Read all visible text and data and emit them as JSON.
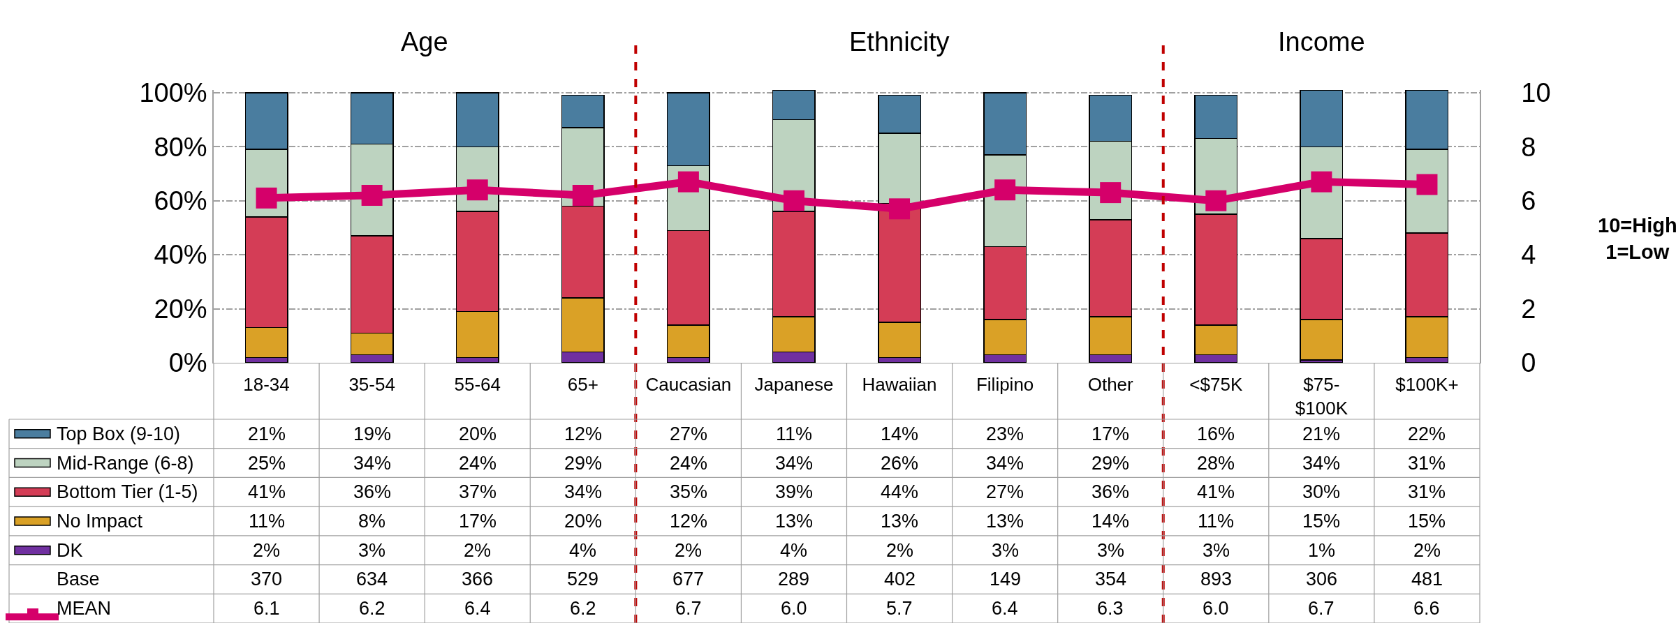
{
  "chart_data": {
    "type": "bar",
    "stacked": true,
    "categories": [
      "18-34",
      "35-54",
      "55-64",
      "65+",
      "Caucasian",
      "Japanese",
      "Hawaiian",
      "Filipino",
      "Other",
      "<$75K",
      "$75-$100K",
      "$100K+"
    ],
    "series": [
      {
        "name": "DK",
        "color": "#7030a0",
        "values": [
          2,
          3,
          2,
          4,
          2,
          4,
          2,
          3,
          3,
          3,
          1,
          2
        ],
        "value_labels": [
          "2%",
          "3%",
          "2%",
          "4%",
          "2%",
          "4%",
          "2%",
          "3%",
          "3%",
          "3%",
          "1%",
          "2%"
        ]
      },
      {
        "name": "No Impact",
        "color": "#daa126",
        "values": [
          11,
          8,
          17,
          20,
          12,
          13,
          13,
          13,
          14,
          11,
          15,
          15
        ],
        "value_labels": [
          "11%",
          "8%",
          "17%",
          "20%",
          "12%",
          "13%",
          "13%",
          "13%",
          "14%",
          "11%",
          "15%",
          "15%"
        ]
      },
      {
        "name": "Bottom Tier (1-5)",
        "color": "#d43d56",
        "values": [
          41,
          36,
          37,
          34,
          35,
          39,
          44,
          27,
          36,
          41,
          30,
          31
        ],
        "value_labels": [
          "41%",
          "36%",
          "37%",
          "34%",
          "35%",
          "39%",
          "44%",
          "27%",
          "36%",
          "41%",
          "30%",
          "31%"
        ]
      },
      {
        "name": "Mid-Range (6-8)",
        "color": "#bdd3c0",
        "values": [
          25,
          34,
          24,
          29,
          24,
          34,
          26,
          34,
          29,
          28,
          34,
          31
        ],
        "value_labels": [
          "25%",
          "34%",
          "24%",
          "29%",
          "24%",
          "34%",
          "26%",
          "34%",
          "29%",
          "28%",
          "34%",
          "31%"
        ]
      },
      {
        "name": "Top Box (9-10)",
        "color": "#4a7d9f",
        "values": [
          21,
          19,
          20,
          12,
          27,
          11,
          14,
          23,
          17,
          16,
          21,
          22
        ],
        "value_labels": [
          "21%",
          "19%",
          "20%",
          "12%",
          "27%",
          "11%",
          "14%",
          "23%",
          "17%",
          "16%",
          "21%",
          "22%"
        ]
      },
      {
        "name": "MEAN",
        "type": "line",
        "axis": "y2",
        "color": "#d5006a",
        "marker": "square",
        "values": [
          6.1,
          6.2,
          6.4,
          6.2,
          6.7,
          6.0,
          5.7,
          6.4,
          6.3,
          6.0,
          6.7,
          6.6
        ],
        "value_labels": [
          "6.1",
          "6.2",
          "6.4",
          "6.2",
          "6.7",
          "6.0",
          "5.7",
          "6.4",
          "6.3",
          "6.0",
          "6.7",
          "6.6"
        ]
      }
    ],
    "ylim": [
      0,
      101
    ],
    "legend": "bottom left",
    "yticks": [
      {
        "value": 0,
        "label": "0%"
      },
      {
        "value": 20,
        "label": "20%"
      },
      {
        "value": 40,
        "label": "40%"
      },
      {
        "value": 60,
        "label": "60%"
      },
      {
        "value": 80,
        "label": "80%"
      },
      {
        "value": 100,
        "label": "100%"
      }
    ],
    "y2lim": [
      0,
      10.1
    ],
    "y2ticks": [
      0,
      2,
      4,
      6,
      8,
      10
    ],
    "y2label": "10=High\n1=Low",
    "grid": "y",
    "annotations": [
      "Age",
      "Ethnicity",
      "Income",
      "Base",
      "370",
      "634",
      "366",
      "529",
      "677",
      "289",
      "402",
      "149",
      "354",
      "893",
      "306",
      "481"
    ]
  }
}
